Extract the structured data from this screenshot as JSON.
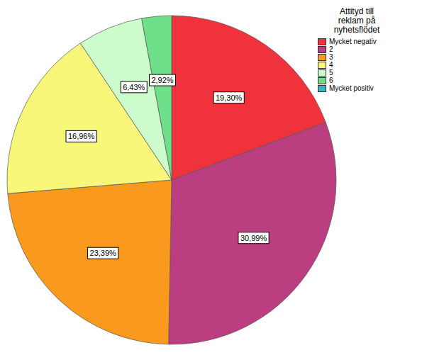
{
  "chart_data": {
    "type": "pie",
    "title": "Attityd till reklam på nyhetsflödet",
    "categories": [
      "Mycket negativ",
      "2",
      "3",
      "4",
      "5",
      "6",
      "Mycket positiv"
    ],
    "values": [
      19.3,
      30.99,
      23.39,
      16.96,
      6.43,
      2.92,
      0
    ],
    "value_labels": [
      "19,30%",
      "30,99%",
      "23,39%",
      "16,96%",
      "6,43%",
      "2,92%",
      null
    ],
    "colors": [
      "#f0323c",
      "#bb3f80",
      "#f99a1f",
      "#f9f77a",
      "#ccfbcc",
      "#6fe08a",
      "#3cb4c8"
    ],
    "data_labels": true,
    "legend": "upper right"
  }
}
